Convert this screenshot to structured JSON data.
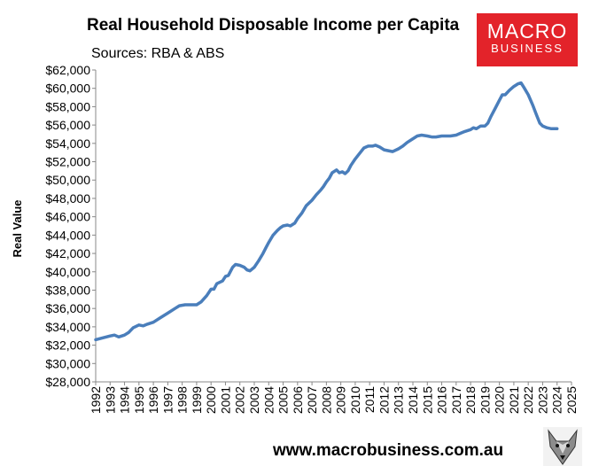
{
  "title": "Real Household Disposable Income per Capita",
  "subtitle": "Sources: RBA & ABS",
  "logo": {
    "line1": "MACRO",
    "line2": "BUSINESS"
  },
  "footer_url": "www.macrobusiness.com.au",
  "colors": {
    "line": "#4a7ebb",
    "logo_bg": "#e3232a",
    "axis": "#888888"
  },
  "chart_data": {
    "type": "line",
    "title": "Real Household Disposable Income per Capita",
    "subtitle": "Sources: RBA & ABS",
    "xlabel": "",
    "ylabel": "Real Value",
    "xlim": [
      1992,
      2025
    ],
    "ylim": [
      28000,
      62000
    ],
    "y_ticks": [
      28000,
      30000,
      32000,
      34000,
      36000,
      38000,
      40000,
      42000,
      44000,
      46000,
      48000,
      50000,
      52000,
      54000,
      56000,
      58000,
      60000,
      62000
    ],
    "y_tick_labels": [
      "$28,000",
      "$30,000",
      "$32,000",
      "$34,000",
      "$36,000",
      "$38,000",
      "$40,000",
      "$42,000",
      "$44,000",
      "$46,000",
      "$48,000",
      "$50,000",
      "$52,000",
      "$54,000",
      "$56,000",
      "$58,000",
      "$60,000",
      "$62,000"
    ],
    "x_tick_labels": [
      "1992",
      "1993",
      "1994",
      "1995",
      "1996",
      "1997",
      "1998",
      "1999",
      "2000",
      "2001",
      "2002",
      "2003",
      "2004",
      "2005",
      "2006",
      "2007",
      "2008",
      "2009",
      "2010",
      "2011",
      "2012",
      "2013",
      "2014",
      "2015",
      "2016",
      "2017",
      "2018",
      "2019",
      "2020",
      "2021",
      "2022",
      "2023",
      "2024",
      "2025"
    ],
    "grid": false,
    "legend": "none",
    "series": [
      {
        "color": "#4a7ebb",
        "points": [
          [
            1992.0,
            32600
          ],
          [
            1992.5,
            32800
          ],
          [
            1993.0,
            33000
          ],
          [
            1993.3,
            33100
          ],
          [
            1993.6,
            32900
          ],
          [
            1994.0,
            33100
          ],
          [
            1994.3,
            33400
          ],
          [
            1994.6,
            33900
          ],
          [
            1995.0,
            34200
          ],
          [
            1995.3,
            34100
          ],
          [
            1995.6,
            34300
          ],
          [
            1996.0,
            34500
          ],
          [
            1996.5,
            35000
          ],
          [
            1997.0,
            35500
          ],
          [
            1997.5,
            36000
          ],
          [
            1997.8,
            36300
          ],
          [
            1998.2,
            36400
          ],
          [
            1998.6,
            36400
          ],
          [
            1999.0,
            36400
          ],
          [
            1999.3,
            36700
          ],
          [
            1999.7,
            37400
          ],
          [
            2000.0,
            38100
          ],
          [
            2000.2,
            38100
          ],
          [
            2000.4,
            38700
          ],
          [
            2000.8,
            39000
          ],
          [
            2001.0,
            39500
          ],
          [
            2001.2,
            39600
          ],
          [
            2001.5,
            40500
          ],
          [
            2001.7,
            40800
          ],
          [
            2002.0,
            40700
          ],
          [
            2002.3,
            40500
          ],
          [
            2002.5,
            40200
          ],
          [
            2002.7,
            40100
          ],
          [
            2003.0,
            40500
          ],
          [
            2003.3,
            41200
          ],
          [
            2003.6,
            42000
          ],
          [
            2003.8,
            42600
          ],
          [
            2004.0,
            43200
          ],
          [
            2004.3,
            44000
          ],
          [
            2004.6,
            44500
          ],
          [
            2004.8,
            44800
          ],
          [
            2005.0,
            45000
          ],
          [
            2005.3,
            45100
          ],
          [
            2005.5,
            45000
          ],
          [
            2005.8,
            45300
          ],
          [
            2006.0,
            45800
          ],
          [
            2006.3,
            46400
          ],
          [
            2006.6,
            47200
          ],
          [
            2007.0,
            47800
          ],
          [
            2007.3,
            48400
          ],
          [
            2007.6,
            48900
          ],
          [
            2007.8,
            49300
          ],
          [
            2008.0,
            49800
          ],
          [
            2008.2,
            50200
          ],
          [
            2008.4,
            50800
          ],
          [
            2008.7,
            51100
          ],
          [
            2008.9,
            50800
          ],
          [
            2009.1,
            50900
          ],
          [
            2009.3,
            50700
          ],
          [
            2009.5,
            51000
          ],
          [
            2009.7,
            51600
          ],
          [
            2010.0,
            52300
          ],
          [
            2010.3,
            52900
          ],
          [
            2010.6,
            53500
          ],
          [
            2010.9,
            53700
          ],
          [
            2011.2,
            53700
          ],
          [
            2011.4,
            53800
          ],
          [
            2011.7,
            53600
          ],
          [
            2012.0,
            53300
          ],
          [
            2012.3,
            53200
          ],
          [
            2012.6,
            53100
          ],
          [
            2013.0,
            53400
          ],
          [
            2013.3,
            53700
          ],
          [
            2013.6,
            54100
          ],
          [
            2014.0,
            54500
          ],
          [
            2014.3,
            54800
          ],
          [
            2014.6,
            54900
          ],
          [
            2015.0,
            54800
          ],
          [
            2015.3,
            54700
          ],
          [
            2015.6,
            54700
          ],
          [
            2016.0,
            54800
          ],
          [
            2016.3,
            54800
          ],
          [
            2016.6,
            54800
          ],
          [
            2017.0,
            54900
          ],
          [
            2017.3,
            55100
          ],
          [
            2017.6,
            55300
          ],
          [
            2018.0,
            55500
          ],
          [
            2018.2,
            55700
          ],
          [
            2018.4,
            55600
          ],
          [
            2018.7,
            55900
          ],
          [
            2019.0,
            55900
          ],
          [
            2019.2,
            56200
          ],
          [
            2019.4,
            56900
          ],
          [
            2019.7,
            57800
          ],
          [
            2020.0,
            58700
          ],
          [
            2020.2,
            59300
          ],
          [
            2020.4,
            59300
          ],
          [
            2020.7,
            59800
          ],
          [
            2021.0,
            60200
          ],
          [
            2021.3,
            60500
          ],
          [
            2021.5,
            60600
          ],
          [
            2021.7,
            60100
          ],
          [
            2022.0,
            59300
          ],
          [
            2022.3,
            58200
          ],
          [
            2022.6,
            57000
          ],
          [
            2022.8,
            56200
          ],
          [
            2023.0,
            55900
          ],
          [
            2023.3,
            55700
          ],
          [
            2023.6,
            55600
          ],
          [
            2024.0,
            55600
          ]
        ]
      }
    ]
  }
}
